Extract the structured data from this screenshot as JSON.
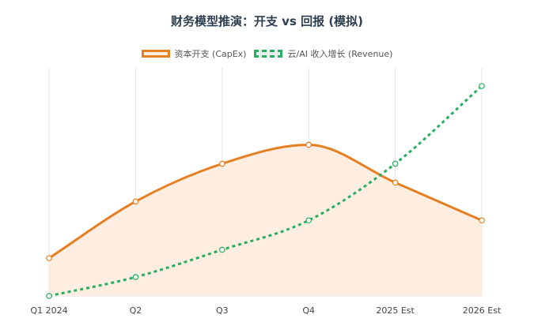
{
  "chart_data": {
    "type": "line",
    "title": "财务模型推演：开支 vs 回报 (模拟)",
    "categories": [
      "Q1 2024",
      "Q2",
      "Q3",
      "Q4",
      "2025 Est",
      "2026 Est"
    ],
    "xlabel": "",
    "ylabel": "",
    "ylim": [
      0,
      100
    ],
    "grid": {
      "x": true,
      "y": false
    },
    "legend_position": "top-center",
    "series": [
      {
        "name": "资本开支 (CapEx)",
        "values": [
          18,
          45,
          63,
          72,
          54,
          36
        ],
        "color": "#e67e22",
        "fill": "#fdeee1",
        "dashed": false,
        "filled": true
      },
      {
        "name": "云/AI 收入增长 (Revenue)",
        "values": [
          0,
          9,
          22,
          36,
          63,
          100
        ],
        "color": "#27ae60",
        "dashed": true,
        "filled": false
      }
    ]
  }
}
